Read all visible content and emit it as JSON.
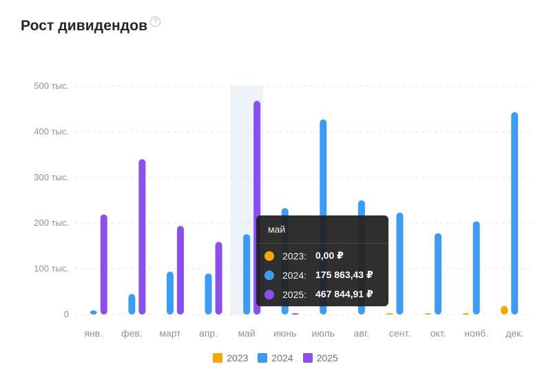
{
  "header": {
    "title": "Рост дивидендов",
    "help_icon": "question-circle-icon",
    "help_glyph": "?"
  },
  "colors": {
    "2023": "#f7a700",
    "2024": "#3d9cf2",
    "2025": "#8b4ff0",
    "grid": "#e3e6ec",
    "axis_text": "#8d929b",
    "hover_band": "#eef3fa"
  },
  "chart_data": {
    "type": "bar",
    "categories": [
      "янв.",
      "фев.",
      "март",
      "апр.",
      "май",
      "июнь",
      "июль",
      "авг.",
      "сент.",
      "окт.",
      "нояб.",
      "дек."
    ],
    "series": [
      {
        "name": "2023",
        "color": "#f7a700",
        "values": [
          0,
          0,
          0,
          0,
          0,
          0,
          0,
          0,
          1500,
          1500,
          1500,
          19000
        ]
      },
      {
        "name": "2024",
        "color": "#3d9cf2",
        "values": [
          9000,
          45000,
          94000,
          90000,
          175863.43,
          233000,
          427000,
          250000,
          223000,
          178000,
          204000,
          443000
        ]
      },
      {
        "name": "2025",
        "color": "#8b4ff0",
        "values": [
          219000,
          340000,
          194000,
          159000,
          467844.91,
          3000,
          0,
          0,
          0,
          0,
          0,
          0
        ]
      }
    ],
    "y_ticks": [
      {
        "value": 0,
        "label": "0"
      },
      {
        "value": 100000,
        "label": "100 тыс."
      },
      {
        "value": 200000,
        "label": "200 тыс."
      },
      {
        "value": 300000,
        "label": "300 тыс."
      },
      {
        "value": 400000,
        "label": "400 тыс."
      },
      {
        "value": 500000,
        "label": "500 тыс."
      }
    ],
    "ylim": [
      0,
      500000
    ],
    "grid": true,
    "legend_position": "bottom-center",
    "highlighted_category": "май"
  },
  "tooltip": {
    "title": "май",
    "rows": [
      {
        "year": "2023:",
        "value": "0,00 ₽",
        "color": "#f7a700"
      },
      {
        "year": "2024:",
        "value": "175 863,43 ₽",
        "color": "#3d9cf2"
      },
      {
        "year": "2025:",
        "value": "467 844,91 ₽",
        "color": "#8b4ff0"
      }
    ]
  },
  "legend": [
    {
      "label": "2023",
      "color": "#f7a700"
    },
    {
      "label": "2024",
      "color": "#3d9cf2"
    },
    {
      "label": "2025",
      "color": "#8b4ff0"
    }
  ]
}
